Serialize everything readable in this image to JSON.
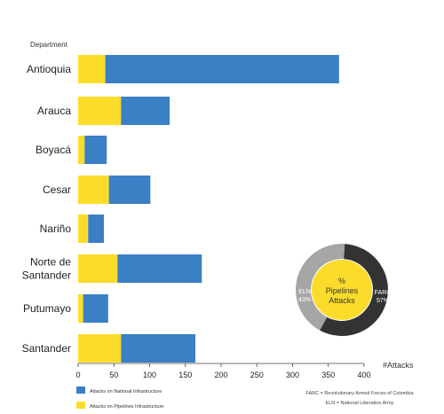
{
  "chart_data": [
    {
      "type": "bar",
      "orientation": "horizontal",
      "stacked": true,
      "ylabel": "Department",
      "xlabel": "#Attacks",
      "categories": [
        "Antioquia",
        "Arauca",
        "Boyacá",
        "Cesar",
        "Nariño",
        "Norte de Santander",
        "Putumayo",
        "Santander"
      ],
      "category_lines": [
        [
          "Antioquia"
        ],
        [
          "Arauca"
        ],
        [
          "Boyacá"
        ],
        [
          "Cesar"
        ],
        [
          "Nariño"
        ],
        [
          "Norte de",
          "Santander"
        ],
        [
          "Putumayo"
        ],
        [
          "Santander"
        ]
      ],
      "series": [
        {
          "name": "Attacks on Pipelines Infrastructure",
          "color": "#fcdc2a",
          "values": [
            38,
            60,
            9,
            43,
            14,
            55,
            7,
            60
          ]
        },
        {
          "name": "Attacks on National Infrastructure",
          "color": "#3b7fc4",
          "values": [
            327,
            68,
            31,
            58,
            22,
            118,
            35,
            104
          ]
        }
      ],
      "xlim": [
        0,
        400
      ],
      "xticks": [
        0,
        50,
        100,
        150,
        200,
        250,
        300,
        350,
        400
      ],
      "legend_position": "bottom-left",
      "grid": false
    },
    {
      "type": "pie",
      "donut": true,
      "center_label": [
        "%",
        "Pipelines",
        "Attacks"
      ],
      "slices": [
        {
          "label": "FARC",
          "value": 57,
          "display": "57%",
          "color": "#333333"
        },
        {
          "label": "ELN",
          "value": 43,
          "display": "43%",
          "color": "#a6a6a6"
        }
      ],
      "center_color": "#fcdc2a"
    }
  ],
  "notes": [
    "FARC = Revolutionary Armed Forces of Colombia",
    "ELN = National Liberation Army"
  ]
}
